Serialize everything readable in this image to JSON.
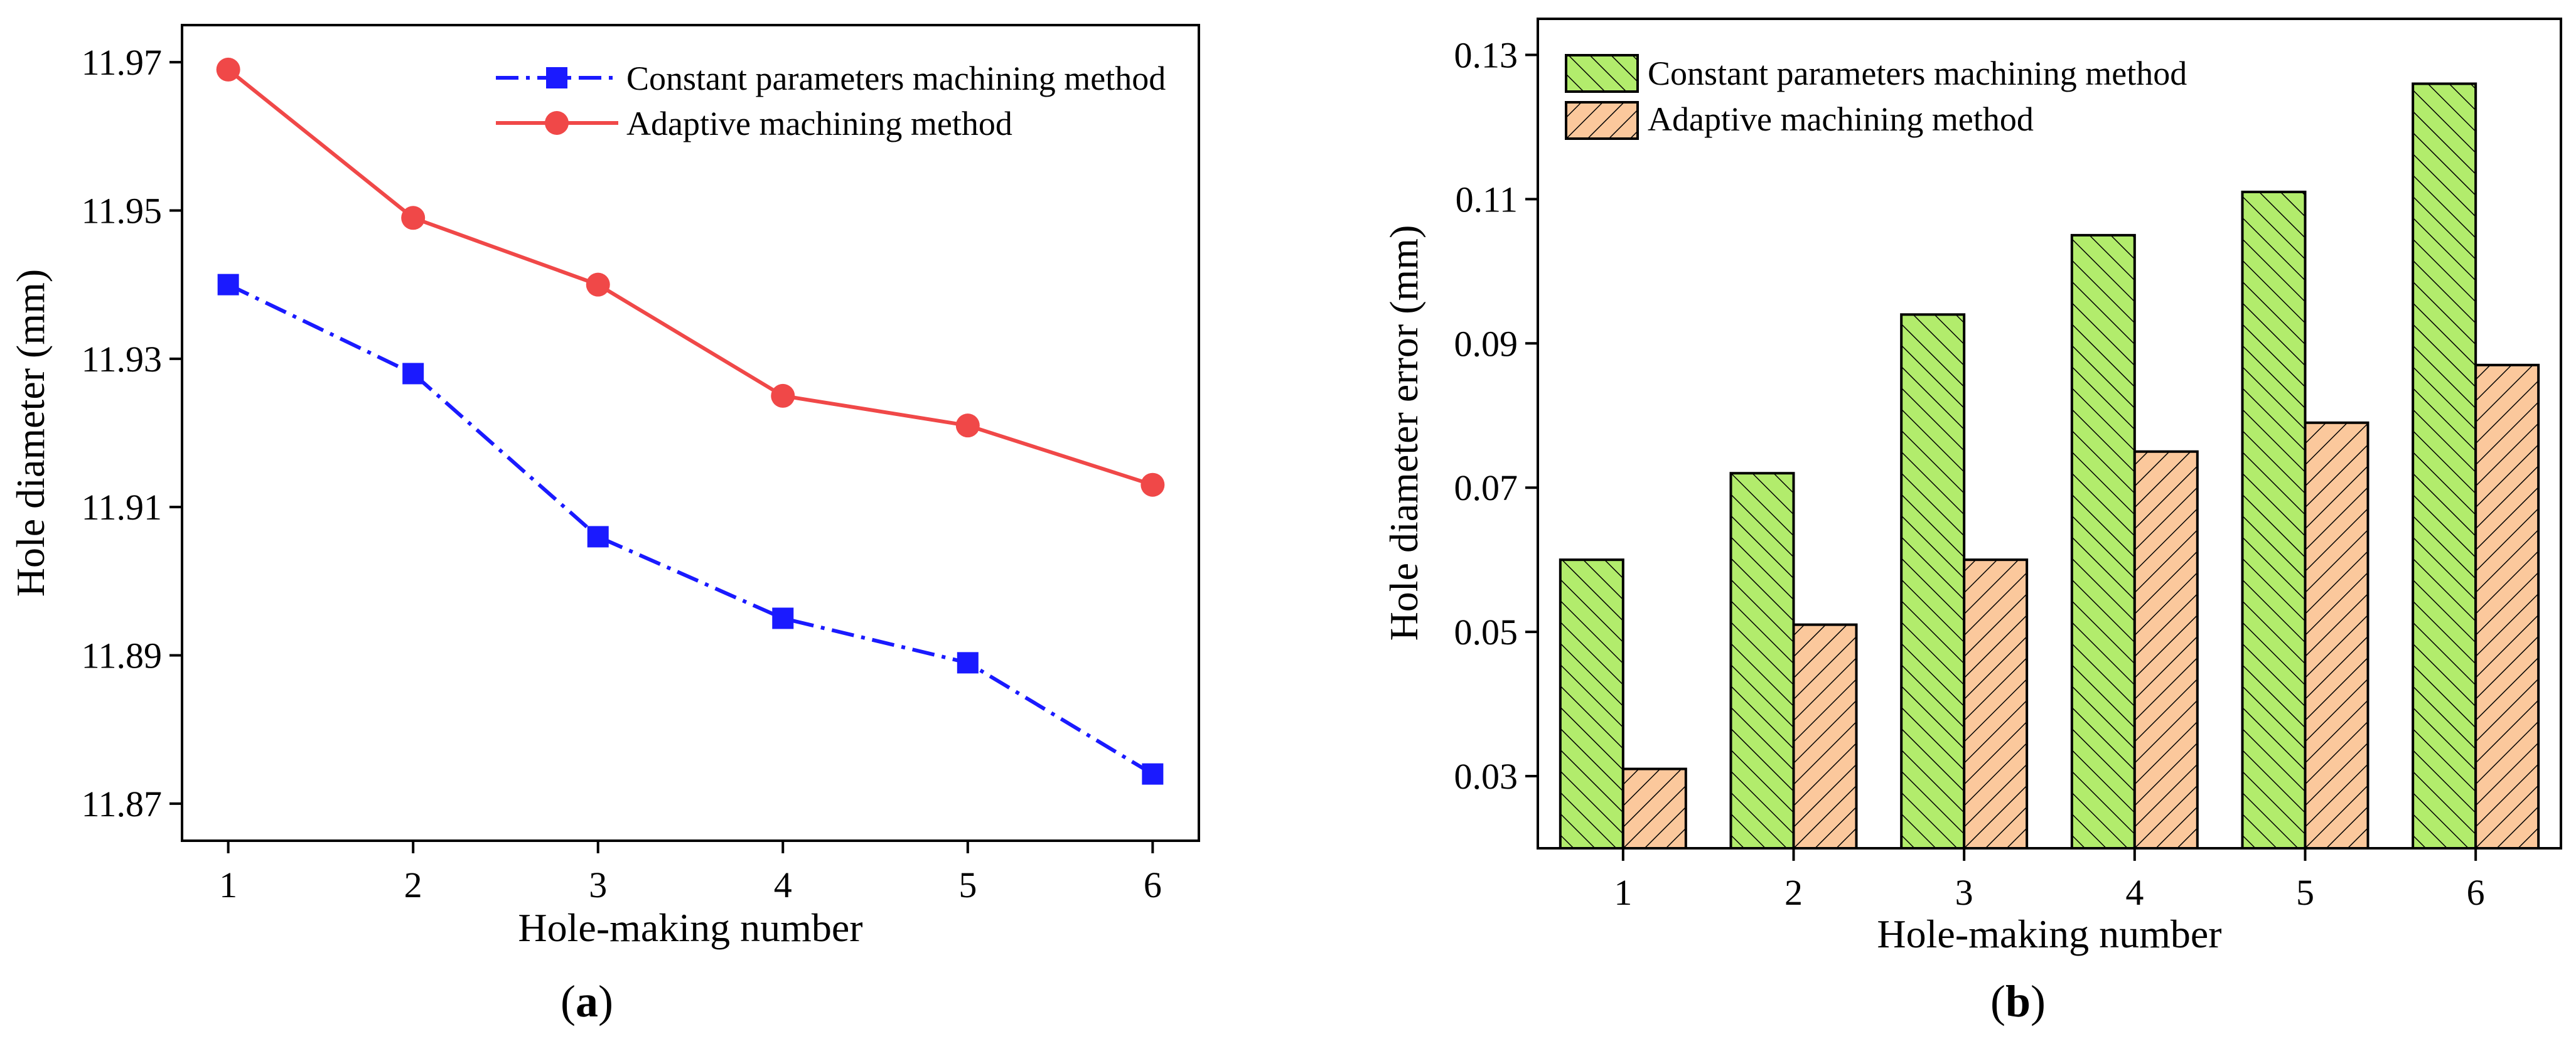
{
  "chart_data": [
    {
      "type": "line",
      "panel_label": "a",
      "xlabel": "Hole-making number",
      "ylabel": "Hole diameter (mm)",
      "x": [
        1,
        2,
        3,
        4,
        5,
        6
      ],
      "xlim": [
        0.75,
        6.25
      ],
      "ylim": [
        11.865,
        11.975
      ],
      "xticks": [
        "1",
        "2",
        "3",
        "4",
        "5",
        "6"
      ],
      "yticks": [
        "11.87",
        "11.89",
        "11.91",
        "11.93",
        "11.95",
        "11.97"
      ],
      "legend_position": "top-right",
      "series": [
        {
          "name": "Constant parameters machining method",
          "marker": "square",
          "line_style": "dash-dot",
          "color": "#1a1aff",
          "values": [
            11.94,
            11.928,
            11.906,
            11.895,
            11.889,
            11.874
          ]
        },
        {
          "name": "Adaptive machining method",
          "marker": "circle",
          "line_style": "solid",
          "color": "#f04848",
          "values": [
            11.969,
            11.949,
            11.94,
            11.925,
            11.921,
            11.913
          ]
        }
      ]
    },
    {
      "type": "bar",
      "panel_label": "b",
      "xlabel": "Hole-making number",
      "ylabel": "Hole diameter error (mm)",
      "categories": [
        "1",
        "2",
        "3",
        "4",
        "5",
        "6"
      ],
      "ylim": [
        0.02,
        0.135
      ],
      "yticks": [
        "0.03",
        "0.05",
        "0.07",
        "0.09",
        "0.11",
        "0.13"
      ],
      "legend_position": "top-left",
      "series": [
        {
          "name": "Constant parameters machining method",
          "color": "#b2ec6c",
          "hatch": "diagonal-up",
          "values": [
            0.06,
            0.072,
            0.094,
            0.105,
            0.111,
            0.126
          ]
        },
        {
          "name": "Adaptive machining method",
          "color": "#fbc89c",
          "hatch": "diagonal-down",
          "values": [
            0.031,
            0.051,
            0.06,
            0.075,
            0.079,
            0.087
          ]
        }
      ]
    }
  ]
}
